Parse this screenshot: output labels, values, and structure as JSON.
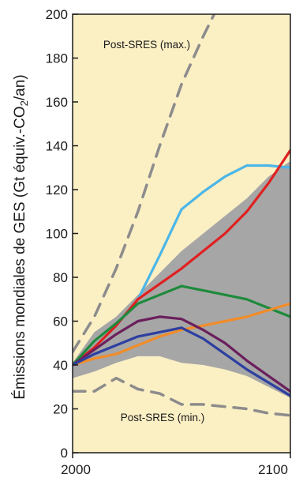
{
  "chart_data": {
    "type": "line",
    "title": "",
    "ylabel_parts": {
      "main": "Émissions mondiales de GES (Gt équiv.-CO",
      "sub": "2",
      "end": "/an)"
    },
    "xlabel": "",
    "xlim": [
      2000,
      2100
    ],
    "ylim": [
      0,
      200
    ],
    "x_ticks": [
      2000,
      2100
    ],
    "y_ticks": [
      0,
      20,
      40,
      60,
      80,
      100,
      120,
      140,
      160,
      180,
      200
    ],
    "grid": false,
    "background": "#fbefc4",
    "annotations": {
      "max_label": "Post-SRES (max.)",
      "min_label": "Post-SRES (min.)"
    },
    "band": {
      "color": "#a6a6a6",
      "x": [
        2000,
        2010,
        2020,
        2030,
        2040,
        2050,
        2060,
        2070,
        2080,
        2090,
        2100
      ],
      "upper": [
        41,
        55,
        62,
        72,
        82,
        92,
        100,
        108,
        116,
        126,
        133
      ],
      "lower": [
        34,
        37,
        41,
        44,
        44,
        41,
        40,
        38,
        35,
        30,
        25
      ]
    },
    "series": [
      {
        "color": "#8c8c8c",
        "dashed": true,
        "x": [
          2000,
          2010,
          2020,
          2030,
          2040,
          2050,
          2060,
          2070
        ],
        "values": [
          46,
          62,
          84,
          110,
          140,
          168,
          190,
          210
        ]
      },
      {
        "color": "#8c8c8c",
        "dashed": true,
        "x": [
          2000,
          2010,
          2020,
          2030,
          2040,
          2050,
          2060,
          2070,
          2080,
          2090,
          2100
        ],
        "values": [
          28,
          28,
          34,
          29,
          27,
          22,
          22,
          21,
          20,
          18,
          17
        ]
      },
      {
        "color": "#4bb6e8",
        "x": [
          2000,
          2010,
          2020,
          2030,
          2040,
          2050,
          2060,
          2070,
          2080,
          2090,
          2100
        ],
        "values": [
          40,
          48,
          58,
          70,
          90,
          111,
          119,
          126,
          131,
          131,
          130
        ]
      },
      {
        "color": "#e02020",
        "x": [
          2000,
          2010,
          2020,
          2030,
          2040,
          2050,
          2060,
          2070,
          2080,
          2090,
          2100
        ],
        "values": [
          40,
          48,
          58,
          70,
          77,
          84,
          92,
          100,
          110,
          123,
          138
        ]
      },
      {
        "color": "#1e8a3c",
        "x": [
          2000,
          2010,
          2020,
          2030,
          2040,
          2050,
          2060,
          2070,
          2080,
          2090,
          2100
        ],
        "values": [
          40,
          51,
          59,
          68,
          72,
          76,
          74,
          72,
          70,
          66,
          62
        ]
      },
      {
        "color": "#f28c28",
        "x": [
          2000,
          2010,
          2020,
          2030,
          2040,
          2050,
          2060,
          2070,
          2080,
          2090,
          2100
        ],
        "values": [
          40,
          43,
          45,
          49,
          53,
          56,
          58,
          60,
          62,
          65,
          68
        ]
      },
      {
        "color": "#6b1f5c",
        "x": [
          2000,
          2010,
          2020,
          2030,
          2040,
          2050,
          2060,
          2070,
          2080,
          2090,
          2100
        ],
        "values": [
          40,
          47,
          54,
          60,
          62,
          61,
          56,
          50,
          42,
          35,
          28
        ]
      },
      {
        "color": "#2d3fa0",
        "x": [
          2000,
          2010,
          2020,
          2030,
          2040,
          2050,
          2060,
          2070,
          2080,
          2090,
          2100
        ],
        "values": [
          40,
          45,
          49,
          53,
          55,
          57,
          52,
          45,
          38,
          32,
          26
        ]
      }
    ]
  }
}
